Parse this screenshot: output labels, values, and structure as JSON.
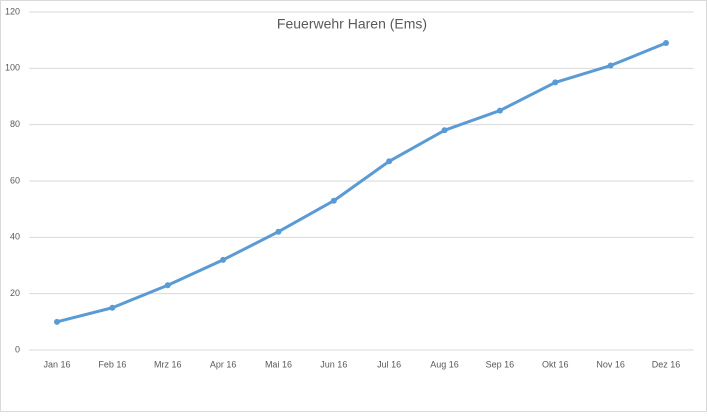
{
  "chart_data": {
    "type": "line",
    "title": "Feuerwehr Haren (Ems)",
    "categories": [
      "Jan 16",
      "Feb 16",
      "Mrz 16",
      "Apr 16",
      "Mai 16",
      "Jun 16",
      "Jul 16",
      "Aug 16",
      "Sep 16",
      "Okt 16",
      "Nov 16",
      "Dez 16"
    ],
    "values": [
      10,
      15,
      23,
      32,
      42,
      53,
      67,
      78,
      85,
      95,
      101,
      109
    ],
    "color": "#5b9bd5",
    "ylim": [
      0,
      120
    ],
    "yticks": [
      0,
      20,
      40,
      60,
      80,
      100,
      120
    ],
    "grid": true
  }
}
